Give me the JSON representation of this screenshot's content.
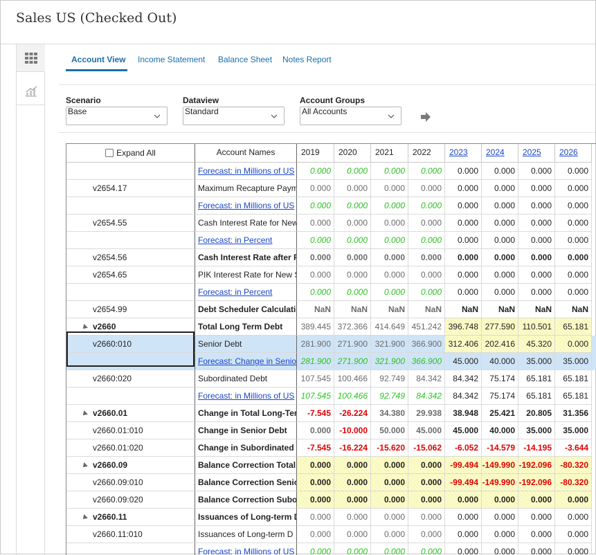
{
  "title": "Sales US (Checked Out)",
  "side_buttons": [
    "grid-view-icon",
    "chart-view-icon"
  ],
  "tabs": [
    "Account View",
    "Income Statement",
    "Balance Sheet",
    "Notes Report"
  ],
  "filters": {
    "scenario": {
      "label": "Scenario",
      "value": "Base"
    },
    "dataview": {
      "label": "Dataview",
      "value": "Standard"
    },
    "account_groups": {
      "label": "Account Groups",
      "value": "All Accounts"
    }
  },
  "grid": {
    "expand_all": "Expand All",
    "names_header": "Account Names",
    "years": [
      "2019",
      "2020",
      "2021",
      "2022",
      "2023",
      "2024",
      "2025",
      "2026"
    ],
    "rows": [
      {
        "acct": "",
        "name": "Forecast: in Millions of US",
        "vals": [
          "0.000",
          "0.000",
          "0.000",
          "0.000",
          "0.000",
          "0.000",
          "0.000",
          "0.000"
        ]
      },
      {
        "acct": "v2654.17",
        "name": "Maximum Recapture Paym",
        "vals": [
          "0.000",
          "0.000",
          "0.000",
          "0.000",
          "0.000",
          "0.000",
          "0.000",
          "0.000"
        ]
      },
      {
        "acct": "",
        "name": "Forecast: in Millions of US",
        "vals": [
          "0.000",
          "0.000",
          "0.000",
          "0.000",
          "0.000",
          "0.000",
          "0.000",
          "0.000"
        ]
      },
      {
        "acct": "v2654.55",
        "name": "Cash Interest Rate for New",
        "vals": [
          "0.000",
          "0.000",
          "0.000",
          "0.000",
          "0.000",
          "0.000",
          "0.000",
          "0.000"
        ]
      },
      {
        "acct": "",
        "name": "Forecast: in Percent",
        "vals": [
          "0.000",
          "0.000",
          "0.000",
          "0.000",
          "0.000",
          "0.000",
          "0.000",
          "0.000"
        ]
      },
      {
        "acct": "v2654.56",
        "name": "Cash Interest Rate after R",
        "vals": [
          "0.000",
          "0.000",
          "0.000",
          "0.000",
          "0.000",
          "0.000",
          "0.000",
          "0.000"
        ]
      },
      {
        "acct": "v2654.65",
        "name": "PIK Interest Rate for New S",
        "vals": [
          "0.000",
          "0.000",
          "0.000",
          "0.000",
          "0.000",
          "0.000",
          "0.000",
          "0.000"
        ]
      },
      {
        "acct": "",
        "name": "Forecast: in Percent",
        "vals": [
          "0.000",
          "0.000",
          "0.000",
          "0.000",
          "0.000",
          "0.000",
          "0.000",
          "0.000"
        ]
      },
      {
        "acct": "v2654.99",
        "name": "Debt Scheduler Calculatio",
        "vals": [
          "NaN",
          "NaN",
          "NaN",
          "NaN",
          "NaN",
          "NaN",
          "NaN",
          "NaN"
        ]
      },
      {
        "acct": "v2660",
        "name": "Total Long Term Debt",
        "vals": [
          "389.445",
          "372.366",
          "414.649",
          "451.242",
          "396.748",
          "277.590",
          "110.501",
          "65.181"
        ]
      },
      {
        "acct": "v2660:010",
        "name": "Senior Debt",
        "vals": [
          "281.900",
          "271.900",
          "321.900",
          "366.900",
          "312.406",
          "202.416",
          "45.320",
          "0.000"
        ]
      },
      {
        "acct": "",
        "name": "Forecast: Change in Senio",
        "vals": [
          "281.900",
          "271.900",
          "321.900",
          "366.900",
          "45.000",
          "40.000",
          "35.000",
          "35.000"
        ]
      },
      {
        "acct": "v2660:020",
        "name": "Subordinated Debt",
        "vals": [
          "107.545",
          "100.466",
          "92.749",
          "84.342",
          "84.342",
          "75.174",
          "65.181",
          "65.181"
        ]
      },
      {
        "acct": "",
        "name": "Forecast: in Millions of US",
        "vals": [
          "107.545",
          "100.466",
          "92.749",
          "84.342",
          "84.342",
          "75.174",
          "65.181",
          "65.181"
        ]
      },
      {
        "acct": "v2660.01",
        "name": "Change in Total Long-Term",
        "vals": [
          "-7.545",
          "-26.224",
          "34.380",
          "29.938",
          "38.948",
          "25.421",
          "20.805",
          "31.356"
        ]
      },
      {
        "acct": "v2660.01:010",
        "name": "Change in Senior Debt",
        "vals": [
          "0.000",
          "-10.000",
          "50.000",
          "45.000",
          "45.000",
          "40.000",
          "35.000",
          "35.000"
        ]
      },
      {
        "acct": "v2660.01:020",
        "name": "Change in Subordinated D",
        "vals": [
          "-7.545",
          "-16.224",
          "-15.620",
          "-15.062",
          "-6.052",
          "-14.579",
          "-14.195",
          "-3.644"
        ]
      },
      {
        "acct": "v2660.09",
        "name": "Balance Correction Total I",
        "vals": [
          "0.000",
          "0.000",
          "0.000",
          "0.000",
          "-99.494",
          "-149.990",
          "-192.096",
          "-80.320"
        ]
      },
      {
        "acct": "v2660.09:010",
        "name": "Balance Correction Senio",
        "vals": [
          "0.000",
          "0.000",
          "0.000",
          "0.000",
          "-99.494",
          "-149.990",
          "-192.096",
          "-80.320"
        ]
      },
      {
        "acct": "v2660.09:020",
        "name": "Balance Correction Subor",
        "vals": [
          "0.000",
          "0.000",
          "0.000",
          "0.000",
          "0.000",
          "0.000",
          "0.000",
          "0.000"
        ]
      },
      {
        "acct": "v2660.11",
        "name": "Issuances of Long-term D",
        "vals": [
          "0.000",
          "0.000",
          "0.000",
          "0.000",
          "0.000",
          "0.000",
          "0.000",
          "0.000"
        ]
      },
      {
        "acct": "v2660.11:010",
        "name": "Issuances of Long-term D",
        "vals": [
          "0.000",
          "0.000",
          "0.000",
          "0.000",
          "0.000",
          "0.000",
          "0.000",
          "0.000"
        ]
      },
      {
        "acct": "",
        "name": "Forecast: in Millions of US",
        "vals": [
          "0.000",
          "0.000",
          "0.000",
          "0.000",
          "0.000",
          "0.000",
          "0.000",
          "0.000"
        ]
      }
    ]
  },
  "colors": {
    "accent": "#1a6ea8",
    "link": "#1a46c8",
    "forecast_green": "#29c21e",
    "negative": "#e00000",
    "highlight_yellow": "#fcfcc8",
    "selected_row": "#cfe4f6"
  }
}
